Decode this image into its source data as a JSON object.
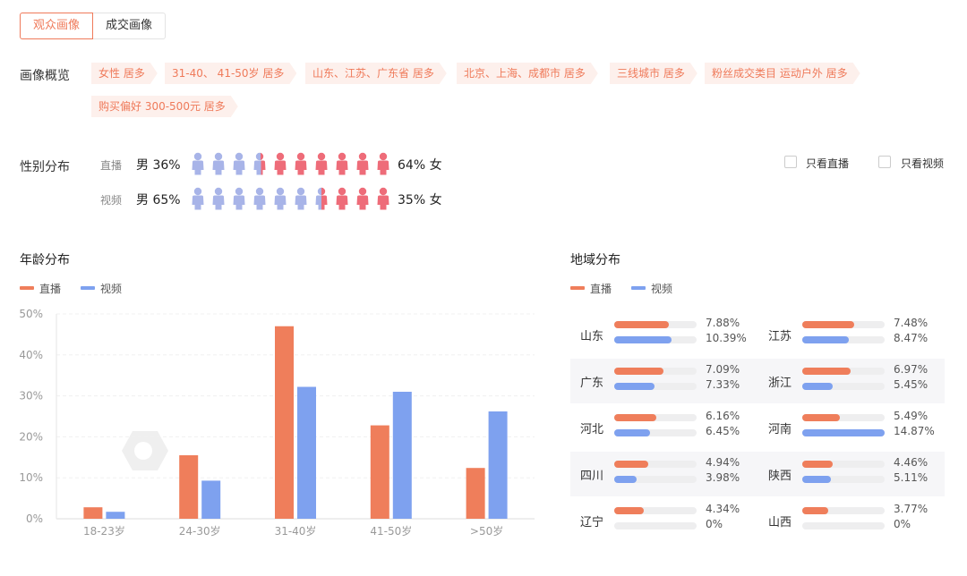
{
  "colors": {
    "accent": "#ef7a5a",
    "live": "#ef7e5b",
    "video": "#7ea1ef",
    "female": "#ee6c79",
    "male": "#a8b4e8"
  },
  "tabs": [
    "观众画像",
    "成交画像"
  ],
  "overview": {
    "label": "画像概览",
    "tags": [
      "女性 居多",
      "31-40、 41-50岁 居多",
      "山东、江苏、广东省 居多",
      "北京、上海、成都市 居多",
      "三线城市 居多",
      "粉丝成交类目 运动户外 居多",
      "购买偏好 300-500元 居多"
    ]
  },
  "gender": {
    "label": "性别分布",
    "rows": [
      {
        "label": "直播",
        "male_text": "男 36%",
        "female_text": "64% 女",
        "male_ratio": 0.36
      },
      {
        "label": "视频",
        "male_text": "男 65%",
        "female_text": "35% 女",
        "male_ratio": 0.65
      }
    ],
    "filters": [
      "只看直播",
      "只看视频"
    ]
  },
  "legend": {
    "live": "直播",
    "video": "视频"
  },
  "chart_data": {
    "type": "bar",
    "title": "年龄分布",
    "categories": [
      "18-23岁",
      "24-30岁",
      "31-40岁",
      "41-50岁",
      ">50岁"
    ],
    "series": [
      {
        "name": "直播",
        "values": [
          2.8,
          15.5,
          47,
          22.8,
          12.4
        ]
      },
      {
        "name": "视频",
        "values": [
          1.7,
          9.3,
          32.2,
          31,
          26.2
        ]
      }
    ],
    "ylim": [
      0,
      50
    ],
    "yticks": [
      "0%",
      "10%",
      "20%",
      "30%",
      "40%",
      "50%"
    ],
    "grid": true,
    "legend_position": "top-left"
  },
  "region": {
    "title": "地域分布",
    "items": [
      {
        "name": "山东",
        "live": 7.88,
        "video": 10.39,
        "live_text": "7.88%",
        "video_text": "10.39%"
      },
      {
        "name": "江苏",
        "live": 7.48,
        "video": 8.47,
        "live_text": "7.48%",
        "video_text": "8.47%"
      },
      {
        "name": "广东",
        "live": 7.09,
        "video": 7.33,
        "live_text": "7.09%",
        "video_text": "7.33%"
      },
      {
        "name": "浙江",
        "live": 6.97,
        "video": 5.45,
        "live_text": "6.97%",
        "video_text": "5.45%"
      },
      {
        "name": "河北",
        "live": 6.16,
        "video": 6.45,
        "live_text": "6.16%",
        "video_text": "6.45%"
      },
      {
        "name": "河南",
        "live": 5.49,
        "video": 14.87,
        "live_text": "5.49%",
        "video_text": "14.87%"
      },
      {
        "name": "四川",
        "live": 4.94,
        "video": 3.98,
        "live_text": "4.94%",
        "video_text": "3.98%"
      },
      {
        "name": "陕西",
        "live": 4.46,
        "video": 5.11,
        "live_text": "4.46%",
        "video_text": "5.11%"
      },
      {
        "name": "辽宁",
        "live": 4.34,
        "video": 0,
        "live_text": "4.34%",
        "video_text": "0%"
      },
      {
        "name": "山西",
        "live": 3.77,
        "video": 0,
        "live_text": "3.77%",
        "video_text": "0%"
      }
    ]
  }
}
